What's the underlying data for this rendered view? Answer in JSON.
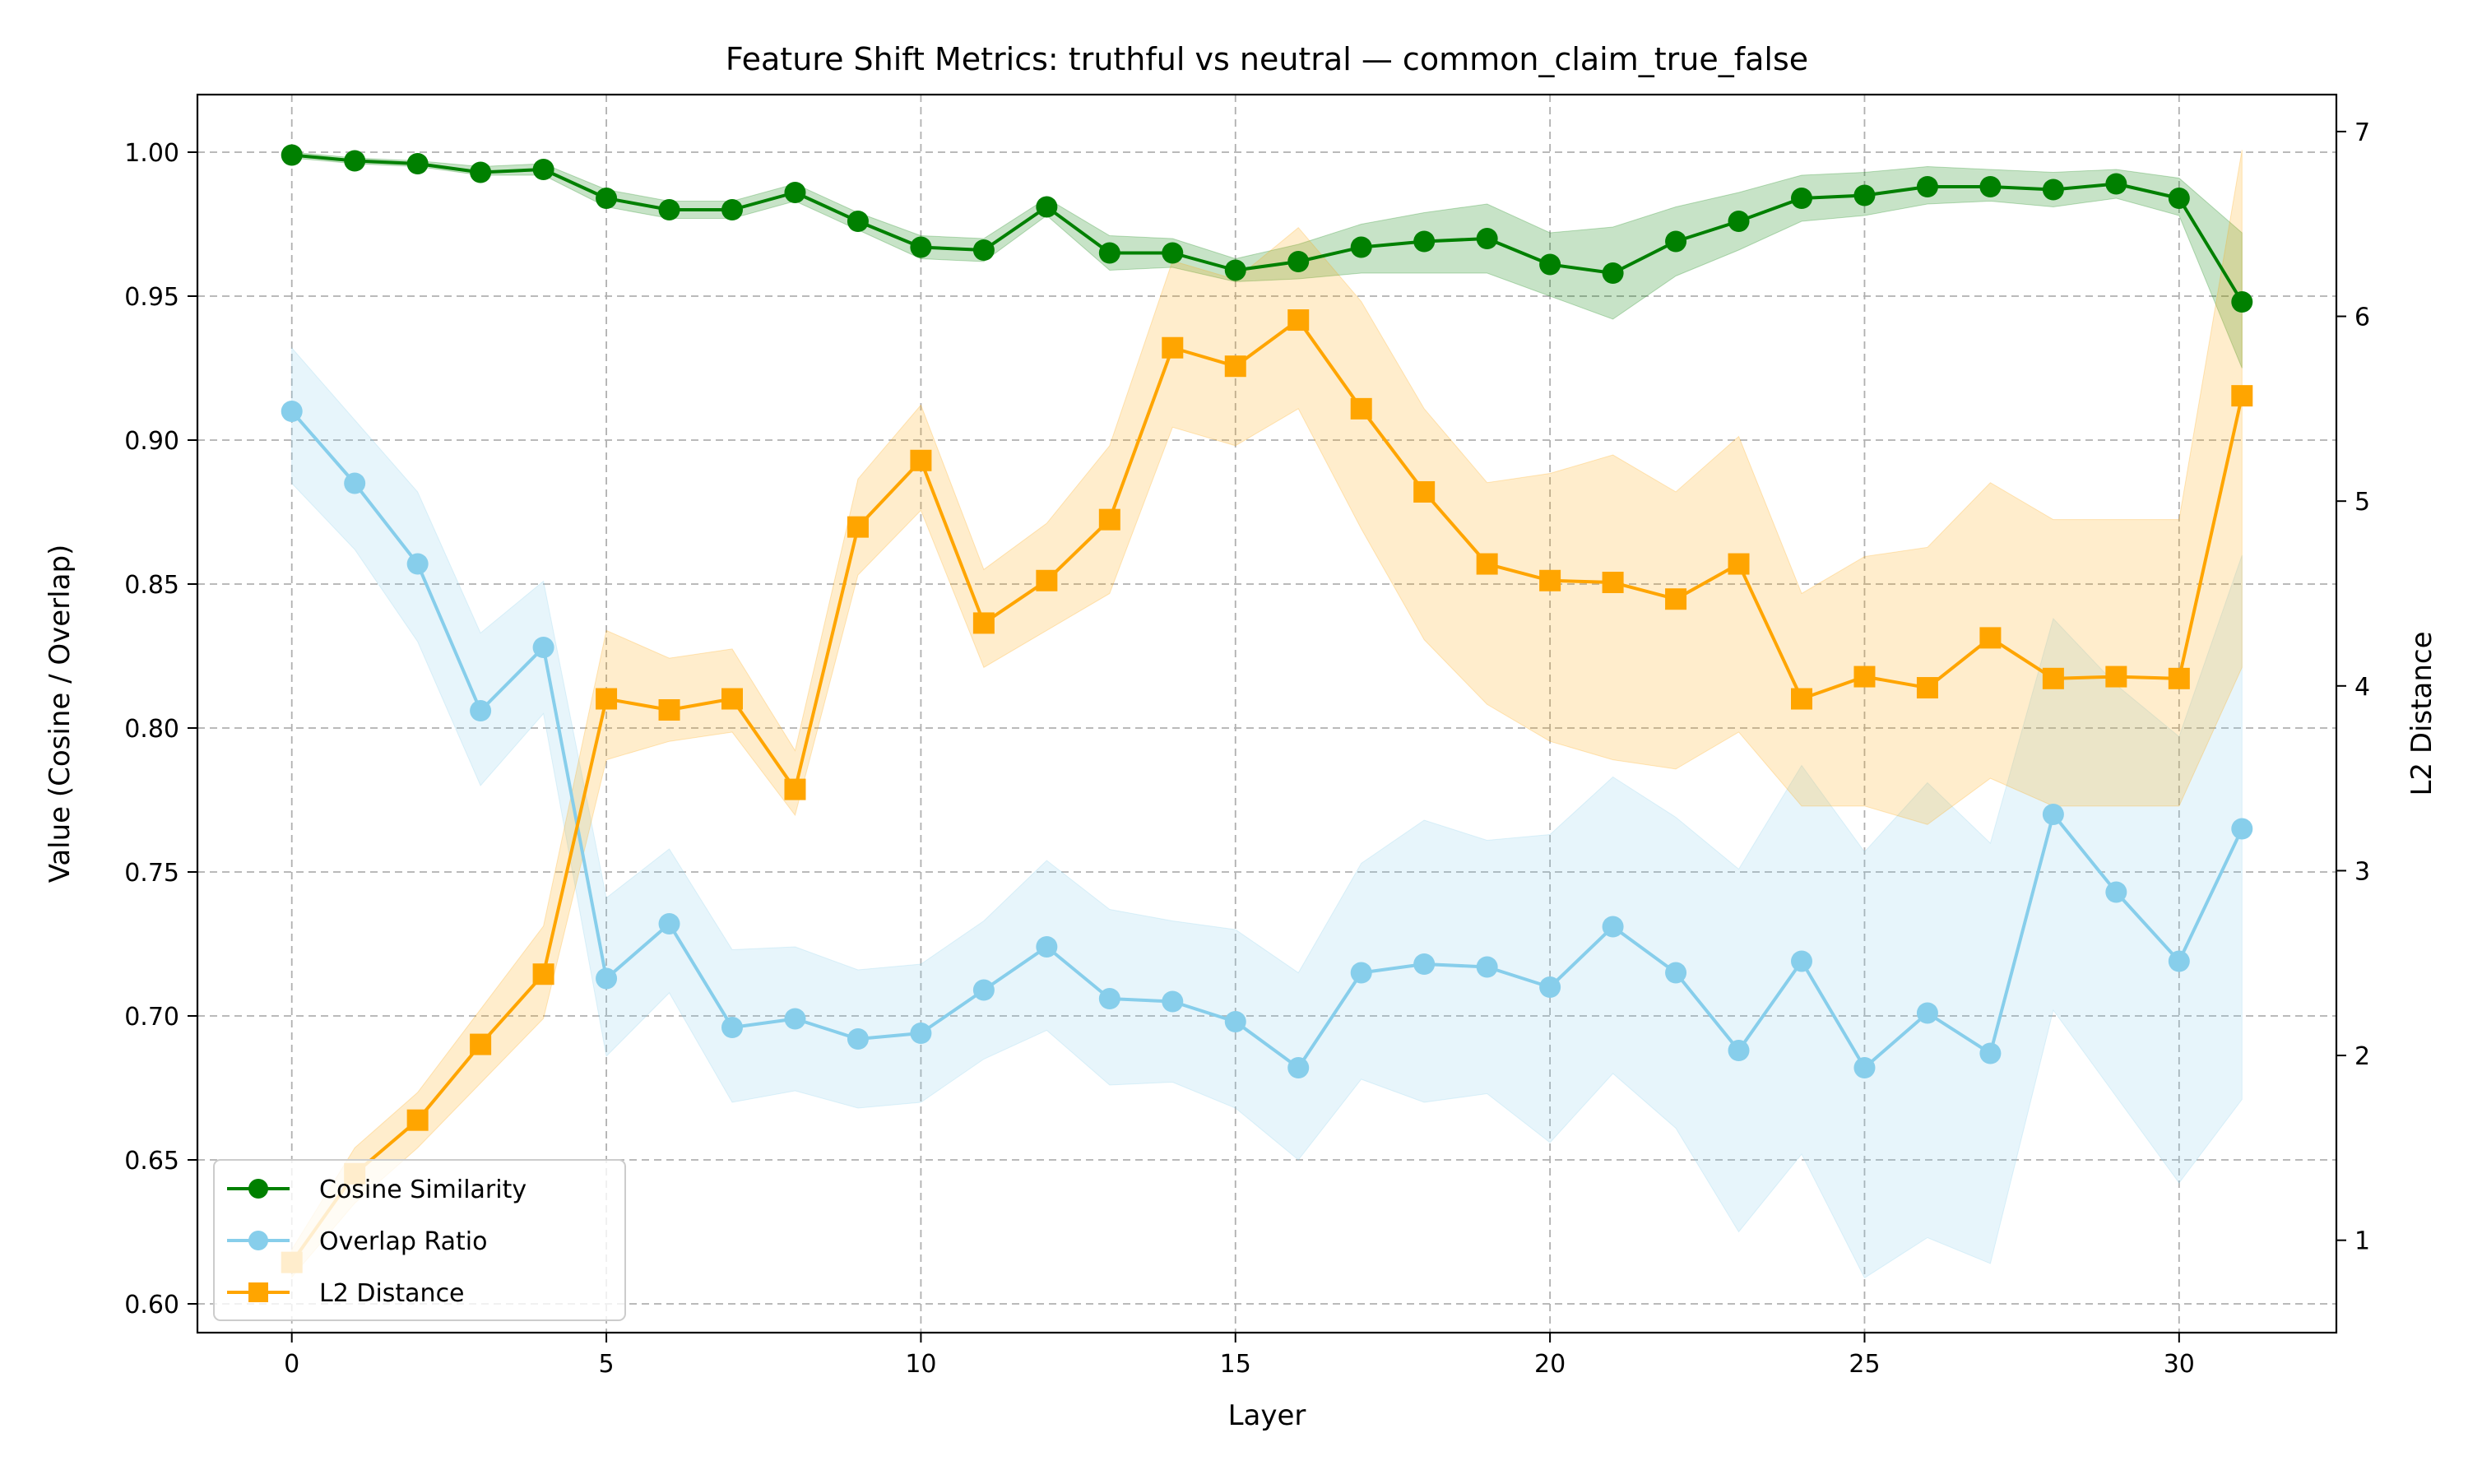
{
  "chart_data": {
    "type": "line",
    "title": "Feature Shift Metrics: truthful vs neutral — common_claim_true_false",
    "xlabel": "Layer",
    "ylabel": "Value (Cosine / Overlap)",
    "ylabel_right": "L2 Distance",
    "xlim": [
      -1.5,
      32.5
    ],
    "ylim": [
      0.59,
      1.02
    ],
    "ylim_right": [
      0.5,
      7.2
    ],
    "x_ticks": [
      0,
      5,
      10,
      15,
      20,
      25,
      30
    ],
    "y_ticks": [
      0.6,
      0.65,
      0.7,
      0.75,
      0.8,
      0.85,
      0.9,
      0.95,
      1.0
    ],
    "y_tick_labels": [
      "0.60",
      "0.65",
      "0.70",
      "0.75",
      "0.80",
      "0.85",
      "0.90",
      "0.95",
      "1.00"
    ],
    "y_ticks_right": [
      1,
      2,
      3,
      4,
      5,
      6,
      7
    ],
    "grid": true,
    "legend_position": "bottom-left",
    "x": [
      0,
      1,
      2,
      3,
      4,
      5,
      6,
      7,
      8,
      9,
      10,
      11,
      12,
      13,
      14,
      15,
      16,
      17,
      18,
      19,
      20,
      21,
      22,
      23,
      24,
      25,
      26,
      27,
      28,
      29,
      30,
      31
    ],
    "series": [
      {
        "name": "Cosine Similarity",
        "axis": "left",
        "color": "#008000",
        "marker": "circle",
        "values": [
          0.999,
          0.997,
          0.996,
          0.993,
          0.994,
          0.984,
          0.98,
          0.98,
          0.986,
          0.976,
          0.967,
          0.966,
          0.981,
          0.965,
          0.965,
          0.959,
          0.962,
          0.967,
          0.969,
          0.97,
          0.961,
          0.958,
          0.969,
          0.976,
          0.984,
          0.985,
          0.988,
          0.988,
          0.987,
          0.989,
          0.984,
          0.948
        ],
        "band_low": [
          0.998,
          0.996,
          0.995,
          0.992,
          0.992,
          0.981,
          0.977,
          0.977,
          0.983,
          0.973,
          0.963,
          0.962,
          0.978,
          0.959,
          0.96,
          0.955,
          0.956,
          0.958,
          0.958,
          0.958,
          0.95,
          0.942,
          0.957,
          0.966,
          0.976,
          0.978,
          0.982,
          0.983,
          0.981,
          0.984,
          0.978,
          0.925
        ],
        "band_high": [
          1.0,
          0.998,
          0.997,
          0.995,
          0.996,
          0.987,
          0.983,
          0.983,
          0.989,
          0.979,
          0.971,
          0.97,
          0.984,
          0.971,
          0.97,
          0.963,
          0.968,
          0.975,
          0.979,
          0.982,
          0.972,
          0.974,
          0.981,
          0.986,
          0.992,
          0.993,
          0.995,
          0.994,
          0.993,
          0.994,
          0.991,
          0.972
        ]
      },
      {
        "name": "Overlap Ratio",
        "axis": "left",
        "color": "#87CEEB",
        "marker": "circle",
        "values": [
          0.91,
          0.885,
          0.857,
          0.806,
          0.828,
          0.713,
          0.732,
          0.696,
          0.699,
          0.692,
          0.694,
          0.709,
          0.724,
          0.706,
          0.705,
          0.698,
          0.682,
          0.715,
          0.718,
          0.717,
          0.71,
          0.731,
          0.715,
          0.688,
          0.719,
          0.682,
          0.701,
          0.687,
          0.77,
          0.743,
          0.719,
          0.765
        ],
        "band_low": [
          0.885,
          0.862,
          0.83,
          0.78,
          0.805,
          0.686,
          0.708,
          0.67,
          0.674,
          0.668,
          0.67,
          0.685,
          0.695,
          0.676,
          0.677,
          0.668,
          0.65,
          0.678,
          0.67,
          0.673,
          0.656,
          0.68,
          0.661,
          0.625,
          0.652,
          0.609,
          0.623,
          0.614,
          0.702,
          0.672,
          0.642,
          0.671
        ],
        "band_high": [
          0.932,
          0.907,
          0.882,
          0.833,
          0.851,
          0.741,
          0.758,
          0.723,
          0.724,
          0.716,
          0.718,
          0.733,
          0.754,
          0.737,
          0.733,
          0.73,
          0.715,
          0.753,
          0.768,
          0.761,
          0.763,
          0.783,
          0.769,
          0.751,
          0.787,
          0.757,
          0.781,
          0.76,
          0.838,
          0.815,
          0.797,
          0.86
        ]
      },
      {
        "name": "L2 Distance",
        "axis": "right",
        "color": "#FFA500",
        "marker": "square",
        "values": [
          0.88,
          1.36,
          1.65,
          2.06,
          2.44,
          3.93,
          3.87,
          3.93,
          3.44,
          4.86,
          5.22,
          4.34,
          4.57,
          4.9,
          5.83,
          5.73,
          5.98,
          5.5,
          5.05,
          4.66,
          4.57,
          4.56,
          4.47,
          4.66,
          3.93,
          4.05,
          3.99,
          4.26,
          4.04,
          4.05,
          4.04,
          5.57
        ],
        "band_low": [
          0.8,
          1.2,
          1.5,
          1.85,
          2.2,
          3.6,
          3.7,
          3.75,
          3.3,
          4.6,
          4.95,
          4.1,
          4.3,
          4.5,
          5.4,
          5.3,
          5.5,
          4.85,
          4.25,
          3.9,
          3.7,
          3.6,
          3.55,
          3.75,
          3.35,
          3.35,
          3.25,
          3.5,
          3.35,
          3.35,
          3.35,
          4.1
        ],
        "band_high": [
          0.95,
          1.5,
          1.8,
          2.25,
          2.7,
          4.3,
          4.15,
          4.2,
          3.65,
          5.12,
          5.52,
          4.63,
          4.88,
          5.3,
          6.3,
          6.2,
          6.48,
          6.08,
          5.5,
          5.1,
          5.15,
          5.25,
          5.05,
          5.35,
          4.5,
          4.7,
          4.75,
          5.1,
          4.9,
          4.9,
          4.9,
          6.9
        ]
      }
    ]
  }
}
